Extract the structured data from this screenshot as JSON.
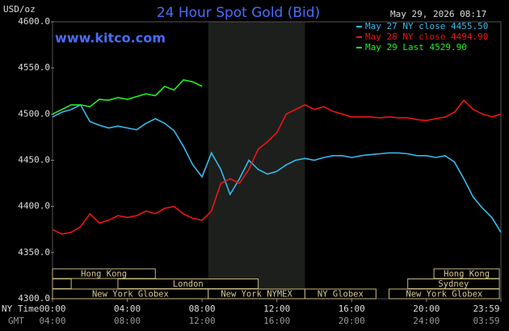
{
  "chart_data": {
    "type": "line",
    "title": "24 Hour Spot Gold (Bid)",
    "y_label": "USD/oz",
    "timestamp": "May 29, 2026 08:17",
    "watermark": "www.kitco.com",
    "x_row_labels": [
      "NY Time",
      "GMT"
    ],
    "x": [
      0,
      0.5,
      1,
      1.5,
      2,
      2.5,
      3,
      3.5,
      4,
      4.5,
      5,
      5.5,
      6,
      6.5,
      7,
      7.5,
      8,
      8.5,
      9,
      9.5,
      10,
      10.5,
      11,
      11.5,
      12,
      12.5,
      13,
      13.5,
      14,
      14.5,
      15,
      15.5,
      16,
      16.5,
      17,
      17.5,
      18,
      18.5,
      19,
      19.5,
      20,
      20.5,
      21,
      21.5,
      22,
      22.5,
      23,
      23.5,
      23.983
    ],
    "series": [
      {
        "name": "May 27 NY close 4455.50",
        "color": "#33bbee",
        "values": [
          4497,
          4502,
          4505,
          4510,
          4492,
          4488,
          4485,
          4487,
          4485,
          4483,
          4490,
          4495,
          4490,
          4482,
          4465,
          4445,
          4432,
          4458,
          4440,
          4413,
          4430,
          4450,
          4440,
          4435,
          4438,
          4445,
          4450,
          4452,
          4450,
          4453,
          4455,
          4455,
          4453,
          4455,
          4456,
          4457,
          4458,
          4458,
          4457,
          4455,
          4455,
          4453,
          4455,
          4448,
          4430,
          4410,
          4398,
          4388,
          4372
        ]
      },
      {
        "name": "May 28 NY close 4494.90",
        "color": "#ee1515",
        "values": [
          4375,
          4370,
          4372,
          4378,
          4392,
          4382,
          4385,
          4390,
          4388,
          4390,
          4395,
          4392,
          4398,
          4400,
          4392,
          4387,
          4385,
          4395,
          4425,
          4430,
          4425,
          4440,
          4462,
          4470,
          4480,
          4500,
          4505,
          4510,
          4505,
          4508,
          4503,
          4500,
          4497,
          4497,
          4497,
          4496,
          4497,
          4496,
          4496,
          4494,
          4493,
          4495,
          4497,
          4502,
          4515,
          4505,
          4500,
          4497,
          4500
        ]
      },
      {
        "name": "May 29 Last 4529.90",
        "color": "#22ee22",
        "values": [
          4500,
          4505,
          4510,
          4510,
          4508,
          4516,
          4515,
          4518,
          4516,
          4519,
          4522,
          4520,
          4530,
          4526,
          4537,
          4535,
          4530,
          null,
          null,
          null,
          null,
          null,
          null,
          null,
          null,
          null,
          null,
          null,
          null,
          null,
          null,
          null,
          null,
          null,
          null,
          null,
          null,
          null,
          null,
          null,
          null,
          null,
          null,
          null,
          null,
          null,
          null,
          null,
          null
        ]
      }
    ],
    "xlim": [
      0,
      23.983
    ],
    "xticks": [
      {
        "value": 0,
        "label": "00:00"
      },
      {
        "value": 4,
        "label": "04:00"
      },
      {
        "value": 8,
        "label": "08:00"
      },
      {
        "value": 12,
        "label": "12:00"
      },
      {
        "value": 16,
        "label": "16:00"
      },
      {
        "value": 20,
        "label": "20:00"
      },
      {
        "value": 23.983,
        "label": "23:59"
      }
    ],
    "xticks_gmt": [
      "04:00",
      "08:00",
      "12:00",
      "16:00",
      "20:00",
      "24:00",
      "03:59"
    ],
    "ylim": [
      4300,
      4600
    ],
    "yticks": [
      {
        "value": 4300,
        "label": "4300.0"
      },
      {
        "value": 4350,
        "label": "4350.0"
      },
      {
        "value": 4400,
        "label": "4400.0"
      },
      {
        "value": 4450,
        "label": "4450.0"
      },
      {
        "value": 4500,
        "label": "4500.0"
      },
      {
        "value": 4550,
        "label": "4550.0"
      },
      {
        "value": 4600,
        "label": "4600.0"
      }
    ],
    "grid": false,
    "session_rows": [
      [
        {
          "name": "Hong Kong",
          "start": 0,
          "end": 5.5
        },
        {
          "name": "Hong Kong",
          "start": 20.4,
          "end": 23.9
        }
      ],
      [
        {
          "name": null,
          "start": 0,
          "end": 1
        },
        {
          "name": "London",
          "start": 3.5,
          "end": 11
        },
        {
          "name": "Sydney",
          "start": 19,
          "end": 23.9
        }
      ],
      [
        {
          "name": "New York Globex",
          "start": 0,
          "end": 8.33
        },
        {
          "name": "New York NYMEX",
          "start": 8.33,
          "end": 13.5
        },
        {
          "name": "NY Globex",
          "start": 13.5,
          "end": 17.3
        },
        {
          "name": "New York Globex",
          "start": 18,
          "end": 23.9
        }
      ]
    ]
  }
}
